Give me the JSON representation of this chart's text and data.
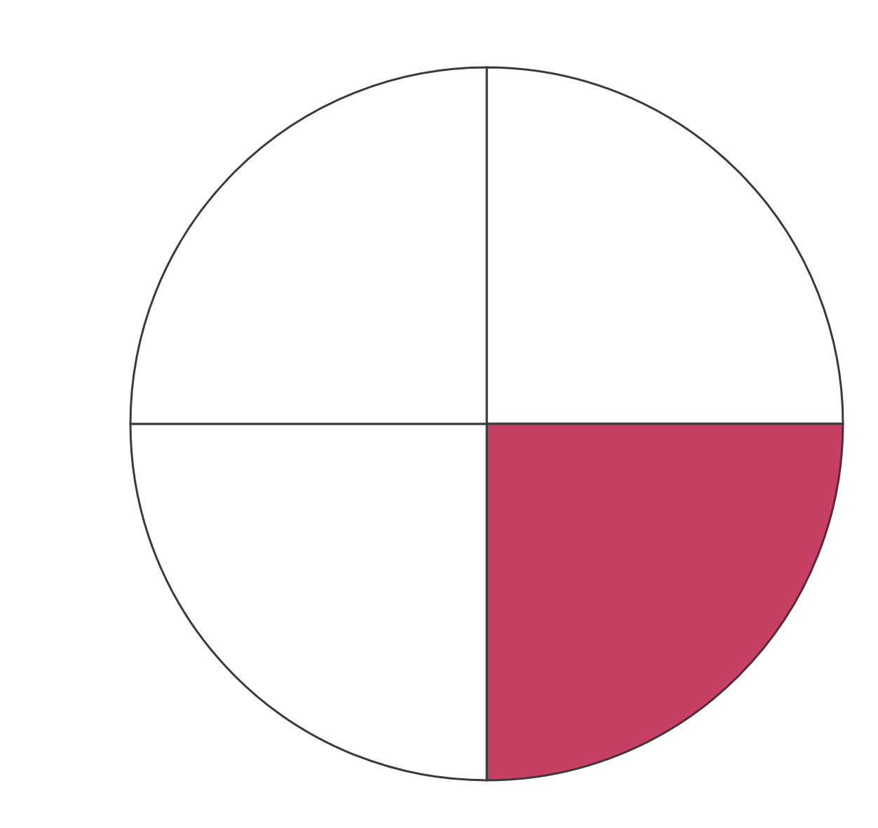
{
  "chart_data": {
    "type": "pie",
    "categories": [
      null,
      null,
      null,
      null
    ],
    "values": [
      25,
      25,
      25,
      25
    ],
    "colors": [
      "#ffffff",
      "#c54062",
      "#ffffff",
      "#ffffff"
    ],
    "legend": false
  }
}
